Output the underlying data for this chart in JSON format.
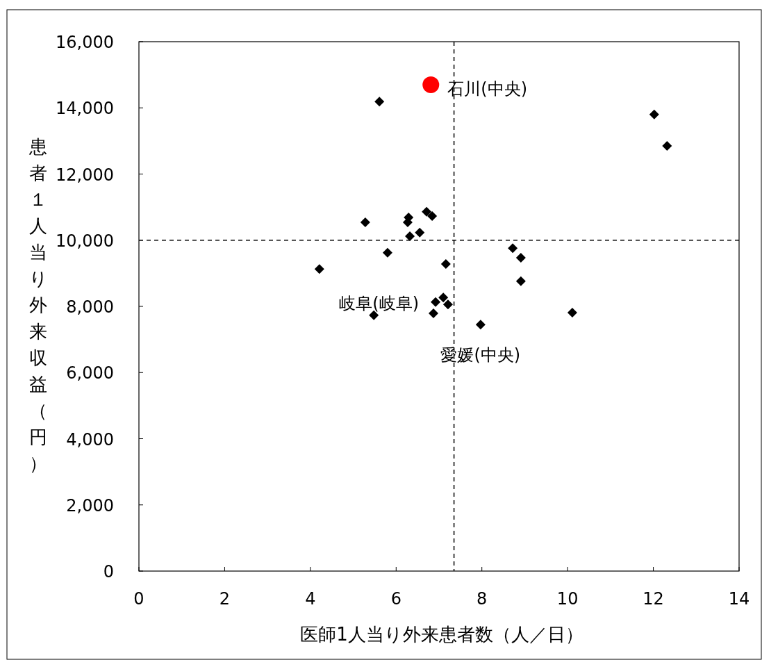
{
  "chart_data": {
    "type": "scatter",
    "xlabel": "医師1人当り外来患者数（人／日）",
    "ylabel": "患者１人当り外来収益（円）",
    "xlim": [
      0,
      14
    ],
    "ylim": [
      0,
      16000
    ],
    "xticks": [
      0,
      2,
      4,
      6,
      8,
      10,
      12,
      14
    ],
    "yticks": [
      {
        "value": 0,
        "label": "0"
      },
      {
        "value": 2000,
        "label": "2,000"
      },
      {
        "value": 4000,
        "label": "4,000"
      },
      {
        "value": 6000,
        "label": "6,000"
      },
      {
        "value": 8000,
        "label": "8,000"
      },
      {
        "value": 10000,
        "label": "10,000"
      },
      {
        "value": 12000,
        "label": "12,000"
      },
      {
        "value": 14000,
        "label": "14,000"
      },
      {
        "value": 16000,
        "label": "16,000"
      }
    ],
    "grid": false,
    "series": [
      {
        "color": "#000000",
        "marker": "diamond",
        "x": [
          4.21,
          5.28,
          5.61,
          5.8,
          6.29,
          6.27,
          6.32,
          6.55,
          6.71,
          6.84,
          7.16,
          5.48,
          6.87,
          7.1,
          7.21,
          6.92,
          7.97,
          8.72,
          8.91,
          8.91,
          10.11,
          12.02,
          12.32
        ],
        "values": [
          9130,
          10540,
          14190,
          9620,
          10690,
          10540,
          10120,
          10230,
          10860,
          10730,
          9280,
          7730,
          7790,
          8270,
          8060,
          8130,
          7450,
          9760,
          9470,
          8760,
          7810,
          13800,
          12850
        ]
      },
      {
        "color": "#ff0000",
        "marker": "circle",
        "x": [
          6.81
        ],
        "values": [
          14700
        ]
      }
    ],
    "ref_lines": [
      {
        "axis": "x",
        "value": 7.35,
        "line_style": "dashed",
        "color": "#000000"
      },
      {
        "axis": "y",
        "value": 10000,
        "line_style": "dashed",
        "color": "#000000"
      }
    ],
    "annotations": [
      {
        "text": "石川(中央)",
        "x": 6.81,
        "y": 14700
      },
      {
        "text": "岐阜(岐阜)",
        "x": 6.92,
        "y": 8130
      },
      {
        "text": "愛媛(中央)",
        "x": 7.97,
        "y": 7450
      }
    ]
  }
}
